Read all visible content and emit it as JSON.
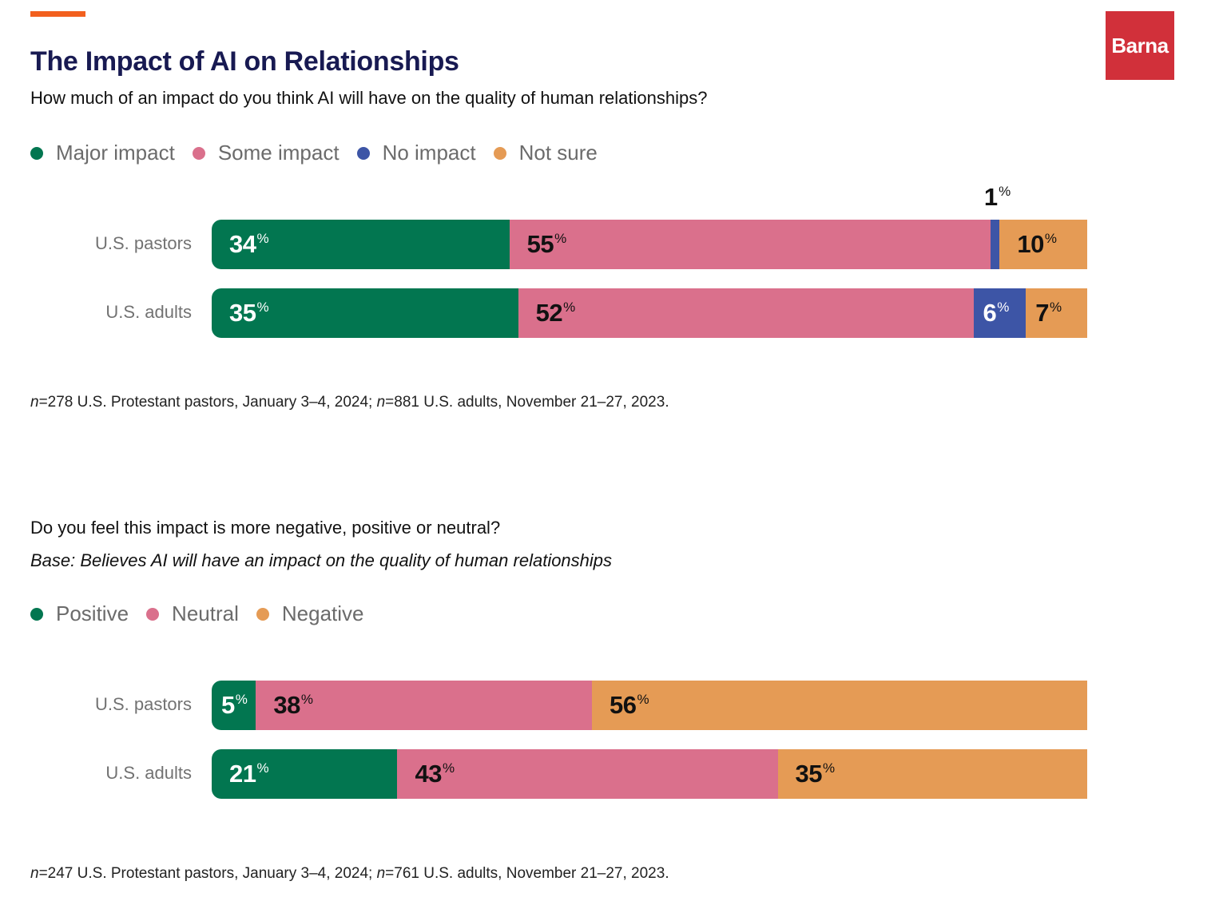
{
  "brand": {
    "logo_text": "Barna",
    "logo_color": "#d1303a",
    "accent_color": "#f2601e",
    "title_color": "#181a52"
  },
  "title": "The Impact of AI on Relationships",
  "chart_data": [
    {
      "type": "bar",
      "orientation": "horizontal",
      "stacked": true,
      "question": "How much of an impact do you think AI will have on the quality of human relationships?",
      "categories": [
        "U.S. pastors",
        "U.S. adults"
      ],
      "series": [
        {
          "name": "Major impact",
          "color": "#027650",
          "label_color": "#ffffff",
          "values": [
            34,
            35
          ]
        },
        {
          "name": "Some impact",
          "color": "#da708c",
          "label_color": "#111111",
          "values": [
            55,
            52
          ]
        },
        {
          "name": "No impact",
          "color": "#3d55a6",
          "label_color": "#ffffff",
          "values": [
            1,
            6
          ]
        },
        {
          "name": "Not sure",
          "color": "#e59b55",
          "label_color": "#111111",
          "values": [
            10,
            7
          ]
        }
      ],
      "unit": "%",
      "legend_position": "top-left",
      "note_n1": "n",
      "note_t1": "=278 U.S. Protestant pastors, January 3–4, 2024; ",
      "note_n2": "n",
      "note_t2": "=881 U.S. adults, November 21–27, 2023."
    },
    {
      "type": "bar",
      "orientation": "horizontal",
      "stacked": true,
      "question": "Do you feel this impact is more negative, positive or neutral?",
      "base": "Base: Believes AI will have an impact on the quality of human relationships",
      "categories": [
        "U.S. pastors",
        "U.S. adults"
      ],
      "series": [
        {
          "name": "Positive",
          "color": "#027650",
          "label_color": "#ffffff",
          "values": [
            5,
            21
          ]
        },
        {
          "name": "Neutral",
          "color": "#da708c",
          "label_color": "#111111",
          "values": [
            38,
            43
          ]
        },
        {
          "name": "Negative",
          "color": "#e59b55",
          "label_color": "#111111",
          "values": [
            56,
            35
          ]
        }
      ],
      "unit": "%",
      "legend_position": "top-left",
      "note_n1": "n",
      "note_t1": "=247 U.S. Protestant pastors, January 3–4, 2024; ",
      "note_n2": "n",
      "note_t2": "=761 U.S. adults, November 21–27, 2023."
    }
  ]
}
